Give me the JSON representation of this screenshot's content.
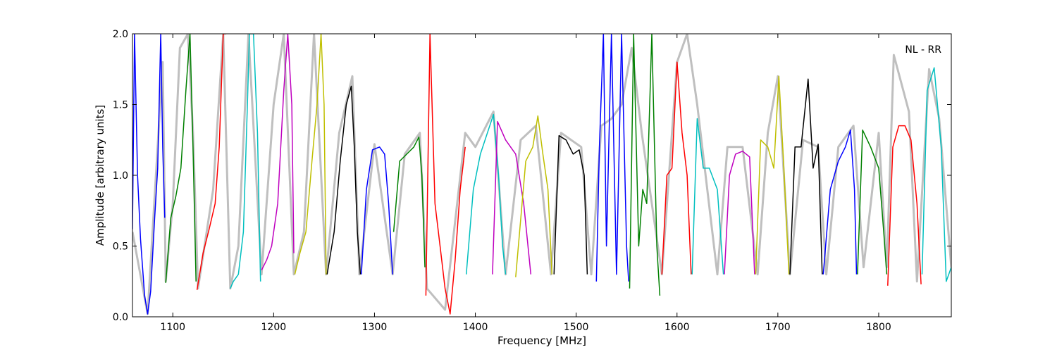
{
  "chart_data": {
    "type": "line",
    "title": "",
    "xlabel": "Frequency [MHz]",
    "ylabel": "Amplitude [arbitrary units]",
    "annotation": "NL - RR",
    "annotation_position": "top-right",
    "xlim": [
      1060,
      1872
    ],
    "ylim": [
      0.0,
      2.0
    ],
    "x_ticks": [
      1100,
      1200,
      1300,
      1400,
      1500,
      1600,
      1700,
      1800
    ],
    "y_ticks": [
      0.0,
      0.5,
      1.0,
      1.5,
      2.0
    ],
    "y_tick_labels": [
      "0.0",
      "0.5",
      "1.0",
      "1.5",
      "2.0"
    ],
    "grid": false,
    "background_series": {
      "color": "#bfbfbf",
      "x": [
        1060,
        1075,
        1090,
        1093,
        1100,
        1107,
        1115,
        1120,
        1125,
        1140,
        1150,
        1157,
        1165,
        1175,
        1188,
        1200,
        1210,
        1220,
        1230,
        1240,
        1252,
        1265,
        1278,
        1285,
        1300,
        1318,
        1330,
        1345,
        1352,
        1370,
        1390,
        1400,
        1418,
        1430,
        1445,
        1460,
        1475,
        1485,
        1495,
        1505,
        1515,
        1525,
        1535,
        1545,
        1555,
        1565,
        1575,
        1585,
        1600,
        1610,
        1620,
        1640,
        1650,
        1665,
        1680,
        1690,
        1700,
        1712,
        1725,
        1740,
        1748,
        1760,
        1775,
        1785,
        1800,
        1808,
        1815,
        1830,
        1838,
        1850,
        1860,
        1872
      ],
      "y": [
        0.6,
        0.02,
        1.8,
        0.25,
        0.8,
        1.9,
        2.0,
        1.3,
        0.2,
        0.9,
        2.0,
        0.2,
        0.5,
        2.0,
        0.3,
        1.5,
        2.0,
        0.3,
        0.6,
        2.0,
        0.3,
        1.3,
        1.7,
        0.3,
        1.22,
        0.3,
        1.15,
        1.3,
        0.2,
        0.05,
        1.3,
        1.2,
        1.45,
        0.3,
        1.25,
        1.35,
        0.3,
        1.3,
        1.25,
        1.2,
        0.3,
        1.35,
        1.4,
        1.5,
        1.9,
        1.3,
        0.8,
        0.3,
        1.8,
        2.0,
        1.5,
        0.3,
        1.2,
        1.2,
        0.3,
        1.3,
        1.7,
        0.3,
        1.25,
        1.2,
        0.3,
        1.2,
        1.35,
        0.35,
        1.3,
        0.35,
        1.85,
        1.45,
        0.25,
        1.75,
        1.4,
        0.35
      ]
    },
    "series": [
      {
        "color": "#0000ff",
        "x": [
          1060,
          1062,
          1065,
          1068,
          1072,
          1075,
          1078,
          1082,
          1085,
          1088,
          1090,
          1092
        ],
        "y": [
          0.62,
          2.0,
          1.0,
          0.55,
          0.15,
          0.02,
          0.18,
          0.7,
          1.05,
          2.0,
          1.2,
          0.7
        ]
      },
      {
        "color": "#008000",
        "x": [
          1093,
          1098,
          1103,
          1108,
          1113,
          1117,
          1120,
          1123
        ],
        "y": [
          0.24,
          0.7,
          0.85,
          1.05,
          1.6,
          2.0,
          1.2,
          0.25
        ]
      },
      {
        "color": "#ff0000",
        "x": [
          1124,
          1130,
          1136,
          1142,
          1146,
          1150,
          1153
        ],
        "y": [
          0.19,
          0.45,
          0.62,
          0.8,
          1.2,
          2.0,
          2.0
        ]
      },
      {
        "color": "#00bfbf",
        "x": [
          1157,
          1160,
          1165,
          1170,
          1174,
          1176,
          1180,
          1184,
          1187
        ],
        "y": [
          0.2,
          0.25,
          0.3,
          0.6,
          1.5,
          2.0,
          2.0,
          1.3,
          0.25
        ]
      },
      {
        "color": "#bf00bf",
        "x": [
          1188,
          1193,
          1198,
          1204,
          1210,
          1214,
          1218,
          1220
        ],
        "y": [
          0.33,
          0.4,
          0.5,
          0.8,
          1.6,
          2.0,
          1.5,
          0.45
        ]
      },
      {
        "color": "#bfbf00",
        "x": [
          1221,
          1226,
          1232,
          1238,
          1243,
          1247,
          1250,
          1252
        ],
        "y": [
          0.3,
          0.45,
          0.6,
          1.1,
          1.5,
          2.0,
          1.5,
          0.3
        ]
      },
      {
        "color": "#000000",
        "x": [
          1253,
          1260,
          1266,
          1272,
          1277,
          1280,
          1283,
          1286
        ],
        "y": [
          0.3,
          0.6,
          1.1,
          1.5,
          1.63,
          1.2,
          0.6,
          0.3
        ]
      },
      {
        "color": "#0000ff",
        "x": [
          1287,
          1292,
          1298,
          1305,
          1310,
          1314,
          1318
        ],
        "y": [
          0.3,
          0.9,
          1.18,
          1.2,
          1.15,
          0.8,
          0.3
        ]
      },
      {
        "color": "#008000",
        "x": [
          1319,
          1325,
          1332,
          1339,
          1344,
          1347,
          1350
        ],
        "y": [
          0.6,
          1.1,
          1.15,
          1.2,
          1.27,
          1.0,
          0.35
        ]
      },
      {
        "color": "#ff0000",
        "x": [
          1351,
          1355,
          1360,
          1365,
          1370,
          1375,
          1380,
          1385,
          1390
        ],
        "y": [
          0.15,
          2.0,
          0.8,
          0.5,
          0.2,
          0.02,
          0.4,
          0.9,
          1.2
        ]
      },
      {
        "color": "#00bfbf",
        "x": [
          1391,
          1398,
          1405,
          1412,
          1418,
          1423,
          1427,
          1430
        ],
        "y": [
          0.3,
          0.9,
          1.15,
          1.3,
          1.43,
          1.0,
          0.5,
          0.3
        ]
      },
      {
        "color": "#bf00bf",
        "x": [
          1417,
          1422,
          1430,
          1440,
          1448,
          1455
        ],
        "y": [
          0.3,
          1.38,
          1.25,
          1.15,
          0.8,
          0.3
        ]
      },
      {
        "color": "#bfbf00",
        "x": [
          1440,
          1450,
          1457,
          1462,
          1467,
          1472,
          1476
        ],
        "y": [
          0.28,
          1.1,
          1.2,
          1.42,
          1.15,
          0.9,
          0.3
        ]
      },
      {
        "color": "#000000",
        "x": [
          1478,
          1483,
          1490,
          1497,
          1503,
          1508,
          1511
        ],
        "y": [
          0.3,
          1.28,
          1.25,
          1.15,
          1.18,
          1.0,
          0.3
        ]
      },
      {
        "color": "#0000ff",
        "x": [
          1520,
          1523,
          1527,
          1530,
          1535,
          1540,
          1545,
          1550,
          1552
        ],
        "y": [
          0.25,
          1.2,
          2.0,
          0.5,
          2.0,
          0.3,
          2.0,
          0.5,
          0.25
        ]
      },
      {
        "color": "#008000",
        "x": [
          1553,
          1557,
          1562,
          1566,
          1570,
          1575,
          1580,
          1583
        ],
        "y": [
          0.2,
          2.0,
          0.5,
          0.9,
          0.8,
          2.0,
          0.5,
          0.15
        ]
      },
      {
        "color": "#ff0000",
        "x": [
          1585,
          1590,
          1595,
          1600,
          1605,
          1610,
          1614
        ],
        "y": [
          0.3,
          1.0,
          1.05,
          1.8,
          1.3,
          1.0,
          0.3
        ]
      },
      {
        "color": "#00bfbf",
        "x": [
          1615,
          1620,
          1626,
          1632,
          1640,
          1646
        ],
        "y": [
          0.3,
          1.4,
          1.05,
          1.05,
          0.9,
          0.3
        ]
      },
      {
        "color": "#bf00bf",
        "x": [
          1647,
          1652,
          1658,
          1665,
          1672,
          1677
        ],
        "y": [
          0.3,
          1.0,
          1.15,
          1.17,
          1.13,
          0.3
        ]
      },
      {
        "color": "#bfbf00",
        "x": [
          1678,
          1683,
          1690,
          1696,
          1701,
          1706,
          1711
        ],
        "y": [
          0.3,
          1.25,
          1.2,
          1.05,
          1.7,
          1.05,
          0.3
        ]
      },
      {
        "color": "#000000",
        "x": [
          1712,
          1717,
          1723,
          1730,
          1735,
          1740,
          1744
        ],
        "y": [
          0.3,
          1.2,
          1.2,
          1.68,
          1.05,
          1.22,
          0.3
        ]
      },
      {
        "color": "#0000ff",
        "x": [
          1745,
          1752,
          1760,
          1767,
          1772,
          1776,
          1778
        ],
        "y": [
          0.3,
          0.9,
          1.1,
          1.2,
          1.32,
          0.9,
          0.3
        ]
      },
      {
        "color": "#008000",
        "x": [
          1779,
          1784,
          1792,
          1800,
          1805,
          1808
        ],
        "y": [
          0.3,
          1.32,
          1.2,
          1.05,
          0.6,
          0.3
        ]
      },
      {
        "color": "#ff0000",
        "x": [
          1809,
          1814,
          1820,
          1826,
          1832,
          1838,
          1842
        ],
        "y": [
          0.22,
          1.2,
          1.35,
          1.35,
          1.25,
          0.8,
          0.23
        ]
      },
      {
        "color": "#00bfbf",
        "x": [
          1843,
          1848,
          1855,
          1862,
          1867,
          1872
        ],
        "y": [
          0.3,
          1.6,
          1.76,
          1.2,
          0.25,
          0.35
        ]
      }
    ]
  }
}
